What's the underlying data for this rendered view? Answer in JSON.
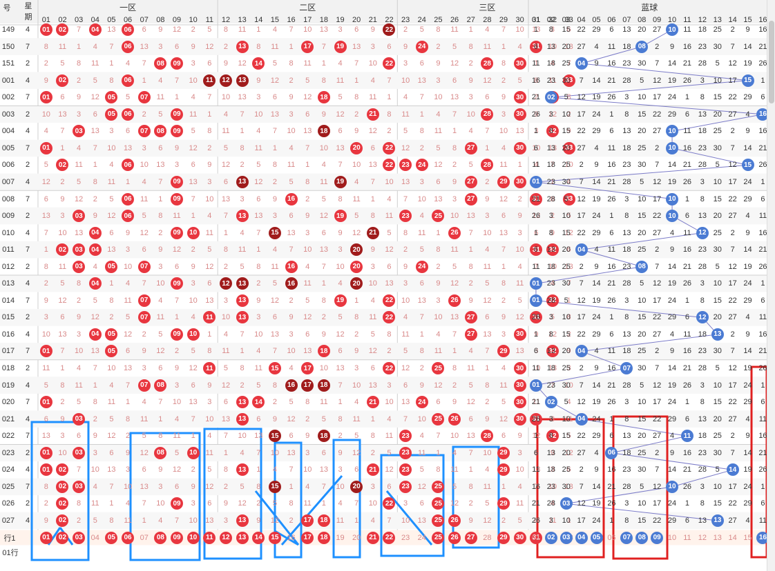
{
  "header": {
    "sort_label": "号",
    "weekday_label_1": "星",
    "weekday_label_2": "期",
    "zone_labels": [
      "一区",
      "二区",
      "三区",
      "蓝球"
    ],
    "red_numbers": [
      "01",
      "02",
      "03",
      "04",
      "05",
      "06",
      "07",
      "08",
      "09",
      "10",
      "11",
      "12",
      "13",
      "14",
      "15",
      "16",
      "17",
      "18",
      "19",
      "20",
      "21",
      "22",
      "23",
      "24",
      "25",
      "26",
      "27",
      "28",
      "29",
      "30",
      "31",
      "32",
      "33"
    ],
    "blue_numbers": [
      "01",
      "02",
      "03",
      "04",
      "05",
      "06",
      "07",
      "08",
      "09",
      "10",
      "11",
      "12",
      "13",
      "14",
      "15",
      "16"
    ]
  },
  "rows": [
    {
      "issue": "149",
      "weekday": "4",
      "reds": [
        "01",
        "02",
        "04",
        "06",
        "22"
      ],
      "blue": "10"
    },
    {
      "issue": "150",
      "weekday": "7",
      "reds": [
        "06",
        "13",
        "17",
        "19",
        "24",
        "31"
      ],
      "blue": "08"
    },
    {
      "issue": "151",
      "weekday": "2",
      "reds": [
        "08",
        "09",
        "14",
        "22",
        "28",
        "30"
      ],
      "blue": "04"
    },
    {
      "issue": "001",
      "weekday": "4",
      "reds": [
        "02",
        "06",
        "11",
        "12",
        "13",
        "33"
      ],
      "blue": "15"
    },
    {
      "issue": "002",
      "weekday": "7",
      "reds": [
        "01",
        "05",
        "07",
        "18",
        "30",
        "32"
      ],
      "blue": "02"
    },
    {
      "issue": "003",
      "weekday": "2",
      "reds": [
        "05",
        "06",
        "09",
        "21",
        "28",
        "30"
      ],
      "blue": "16"
    },
    {
      "issue": "004",
      "weekday": "4",
      "reds": [
        "03",
        "07",
        "08",
        "09",
        "18",
        "32"
      ],
      "blue": "10"
    },
    {
      "issue": "005",
      "weekday": "7",
      "reds": [
        "01",
        "20",
        "22",
        "27",
        "30",
        "33"
      ],
      "blue": "10"
    },
    {
      "issue": "006",
      "weekday": "2",
      "reds": [
        "02",
        "06",
        "22",
        "23",
        "24",
        "28"
      ],
      "blue": "15"
    },
    {
      "issue": "007",
      "weekday": "4",
      "reds": [
        "09",
        "13",
        "19",
        "27",
        "29",
        "30"
      ],
      "blue": "01"
    },
    {
      "issue": "008",
      "weekday": "7",
      "reds": [
        "06",
        "09",
        "16",
        "27",
        "31",
        "33"
      ],
      "blue": "10"
    },
    {
      "issue": "009",
      "weekday": "2",
      "reds": [
        "03",
        "06",
        "13",
        "19",
        "23",
        "25"
      ],
      "blue": "10"
    },
    {
      "issue": "010",
      "weekday": "4",
      "reds": [
        "04",
        "09",
        "10",
        "15",
        "21",
        "26"
      ],
      "blue": "12"
    },
    {
      "issue": "011",
      "weekday": "7",
      "reds": [
        "02",
        "03",
        "04",
        "20",
        "31",
        "32"
      ],
      "blue": "04"
    },
    {
      "issue": "012",
      "weekday": "2",
      "reds": [
        "03",
        "05",
        "07",
        "16",
        "20",
        "24"
      ],
      "blue": "08"
    },
    {
      "issue": "013",
      "weekday": "4",
      "reds": [
        "04",
        "09",
        "12",
        "13",
        "16",
        "20"
      ],
      "blue": "01"
    },
    {
      "issue": "014",
      "weekday": "7",
      "reds": [
        "07",
        "13",
        "19",
        "22",
        "26",
        "32"
      ],
      "blue": "01"
    },
    {
      "issue": "015",
      "weekday": "2",
      "reds": [
        "07",
        "11",
        "13",
        "22",
        "27",
        "31"
      ],
      "blue": "12"
    },
    {
      "issue": "016",
      "weekday": "4",
      "reds": [
        "04",
        "05",
        "09",
        "10",
        "27",
        "30"
      ],
      "blue": "13"
    },
    {
      "issue": "017",
      "weekday": "7",
      "reds": [
        "01",
        "05",
        "18",
        "29",
        "32"
      ],
      "blue": "04"
    },
    {
      "issue": "018",
      "weekday": "2",
      "reds": [
        "11",
        "15",
        "17",
        "22",
        "25",
        "30"
      ],
      "blue": "07"
    },
    {
      "issue": "019",
      "weekday": "4",
      "reds": [
        "07",
        "08",
        "16",
        "17",
        "18",
        "30"
      ],
      "blue": "01"
    },
    {
      "issue": "020",
      "weekday": "7",
      "reds": [
        "01",
        "13",
        "14",
        "21",
        "24",
        "30"
      ],
      "blue": "02"
    },
    {
      "issue": "021",
      "weekday": "4",
      "reds": [
        "03",
        "13",
        "25",
        "26",
        "30",
        "31"
      ],
      "blue": "04"
    },
    {
      "issue": "022",
      "weekday": "7",
      "reds": [
        "15",
        "18",
        "23",
        "28",
        "32"
      ],
      "blue": "11"
    },
    {
      "issue": "023",
      "weekday": "2",
      "reds": [
        "01",
        "03",
        "08",
        "10",
        "23",
        "29"
      ],
      "blue": "06"
    },
    {
      "issue": "024",
      "weekday": "4",
      "reds": [
        "01",
        "02",
        "13",
        "21",
        "23",
        "29"
      ],
      "blue": "14"
    },
    {
      "issue": "025",
      "weekday": "7",
      "reds": [
        "02",
        "03",
        "15",
        "20",
        "23",
        "25"
      ],
      "blue": "10"
    },
    {
      "issue": "026",
      "weekday": "2",
      "reds": [
        "02",
        "09",
        "22",
        "25",
        "29"
      ],
      "blue": "03"
    },
    {
      "issue": "027",
      "weekday": "4",
      "reds": [
        "02",
        "13",
        "17",
        "18",
        "25",
        "26"
      ],
      "blue": "13"
    }
  ],
  "footer": {
    "label": "行1",
    "red_row": [
      "01",
      "02",
      "03",
      "04",
      "05",
      "06",
      "07",
      "08",
      "09",
      "10",
      "11",
      "12",
      "13",
      "14",
      "15",
      "16",
      "17",
      "18",
      "19",
      "20",
      "21",
      "22",
      "23",
      "24",
      "25",
      "26",
      "27",
      "28",
      "29",
      "30",
      "31",
      "32",
      "33"
    ],
    "blue_row": [
      "01",
      "02",
      "03",
      "04",
      "05",
      "06",
      "07",
      "08",
      "09",
      "10",
      "11",
      "12",
      "13",
      "14",
      "15",
      "16"
    ],
    "next_label": "01行"
  },
  "colors": {
    "red_ball": "#e8363f",
    "dark_ball": "#a01c1c",
    "blue_ball": "#4b7bd3",
    "annotation_blue": "#1e90ff",
    "annotation_red": "#e02020",
    "trend_line": "#7b7bc8"
  }
}
